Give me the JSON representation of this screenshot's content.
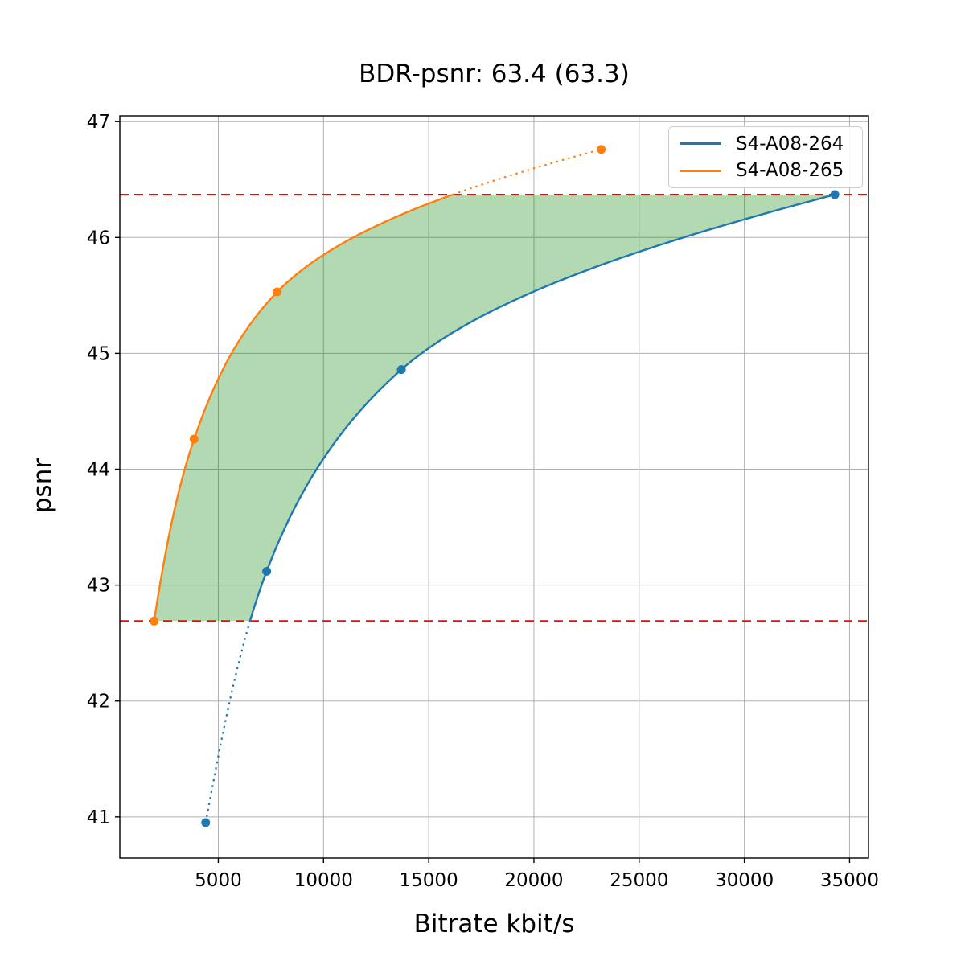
{
  "title": "BDR-psnr: 63.4 (63.3)",
  "axes": {
    "xlabel": "Bitrate kbit/s",
    "ylabel": "psnr"
  },
  "legend": {
    "entries": [
      {
        "label": "S4-A08-264",
        "color": "#1f77b4"
      },
      {
        "label": "S4-A08-265",
        "color": "#ff7f0e"
      }
    ]
  },
  "chart_data": {
    "type": "line",
    "title": "BDR-psnr: 63.4 (63.3)",
    "xlabel": "Bitrate kbit/s",
    "ylabel": "psnr",
    "xlim": [
      320,
      35900
    ],
    "ylim": [
      40.645,
      47.05
    ],
    "xticks": [
      5000,
      10000,
      15000,
      20000,
      25000,
      30000,
      35000
    ],
    "yticks": [
      41,
      42,
      43,
      44,
      45,
      46,
      47
    ],
    "grid": true,
    "grid_color": "#b0b0b0",
    "legend_position": "upper right",
    "series": [
      {
        "name": "S4-A08-264",
        "color": "#1f77b4",
        "points": [
          [
            4400,
            40.95
          ],
          [
            7300,
            43.12
          ],
          [
            13700,
            44.86
          ],
          [
            34300,
            46.37
          ]
        ]
      },
      {
        "name": "S4-A08-265",
        "color": "#ff7f0e",
        "points": [
          [
            1950,
            42.69
          ],
          [
            3850,
            44.26
          ],
          [
            7800,
            45.53
          ],
          [
            23200,
            46.76
          ]
        ]
      }
    ],
    "hlines": {
      "values": [
        46.37,
        42.69
      ],
      "color": "#ff0000",
      "style": "dashed"
    },
    "shaded_region": {
      "between_psnr": [
        42.69,
        46.37
      ],
      "color": "#008000",
      "opacity": 0.3
    }
  }
}
